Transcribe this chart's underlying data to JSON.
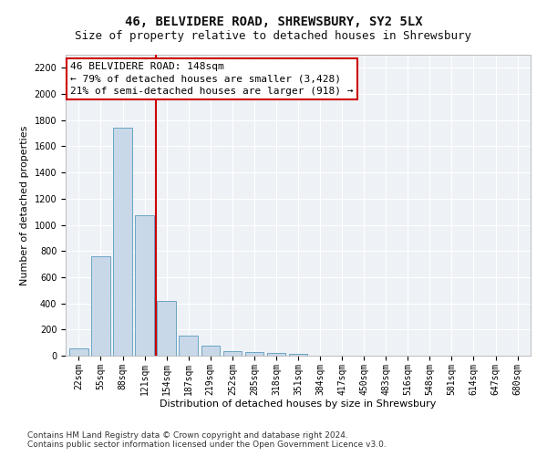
{
  "title1": "46, BELVIDERE ROAD, SHREWSBURY, SY2 5LX",
  "title2": "Size of property relative to detached houses in Shrewsbury",
  "xlabel": "Distribution of detached houses by size in Shrewsbury",
  "ylabel": "Number of detached properties",
  "categories": [
    "22sqm",
    "55sqm",
    "88sqm",
    "121sqm",
    "154sqm",
    "187sqm",
    "219sqm",
    "252sqm",
    "285sqm",
    "318sqm",
    "351sqm",
    "384sqm",
    "417sqm",
    "450sqm",
    "483sqm",
    "516sqm",
    "548sqm",
    "581sqm",
    "614sqm",
    "647sqm",
    "680sqm"
  ],
  "values": [
    55,
    760,
    1745,
    1070,
    420,
    155,
    80,
    38,
    28,
    20,
    13,
    0,
    0,
    0,
    0,
    0,
    0,
    0,
    0,
    0,
    0
  ],
  "bar_color": "#c8d8e8",
  "bar_edge_color": "#5a9abf",
  "vline_x": 3.5,
  "vline_color": "#cc0000",
  "annotation_line1": "46 BELVIDERE ROAD: 148sqm",
  "annotation_line2": "← 79% of detached houses are smaller (3,428)",
  "annotation_line3": "21% of semi-detached houses are larger (918) →",
  "annotation_box_color": "#ffffff",
  "annotation_box_edge": "#cc0000",
  "ylim": [
    0,
    2300
  ],
  "yticks": [
    0,
    200,
    400,
    600,
    800,
    1000,
    1200,
    1400,
    1600,
    1800,
    2000,
    2200
  ],
  "bg_color": "#eef2f7",
  "footer1": "Contains HM Land Registry data © Crown copyright and database right 2024.",
  "footer2": "Contains public sector information licensed under the Open Government Licence v3.0.",
  "title1_fontsize": 10,
  "title2_fontsize": 9,
  "axis_label_fontsize": 8,
  "tick_fontsize": 7,
  "footer_fontsize": 6.5,
  "annot_fontsize": 8
}
